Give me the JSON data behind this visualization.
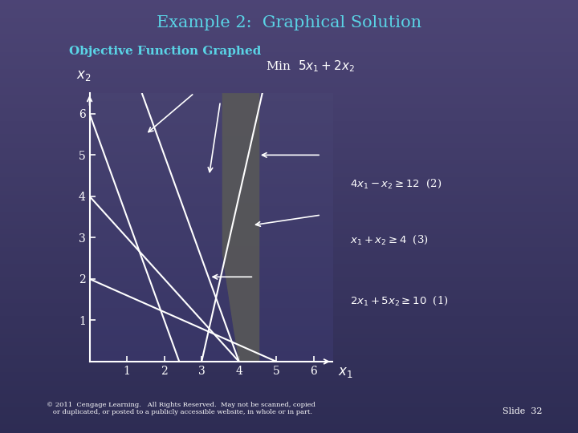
{
  "title": "Example 2:  Graphical Solution",
  "subtitle": "Objective Function Graphed",
  "title_color": "#5ad4e6",
  "subtitle_color": "#5ad4e6",
  "text_color": "white",
  "bg_left": "#3a3560",
  "bg_right": "#4a4575",
  "axis_facecolor": "#3a3560",
  "feasible_color": "#555560",
  "xlim": [
    0,
    6.5
  ],
  "ylim": [
    0,
    6.5
  ],
  "xticks": [
    1,
    2,
    3,
    4,
    5,
    6
  ],
  "yticks": [
    1,
    2,
    3,
    4,
    5,
    6
  ],
  "copyright_text": "© 2011  Cengage Learning.   All Rights Reserved.  May not be scanned, copied\n   or duplicated, or posted to a publicly accessible website, in whole or in part.",
  "slide_text": "Slide  32"
}
